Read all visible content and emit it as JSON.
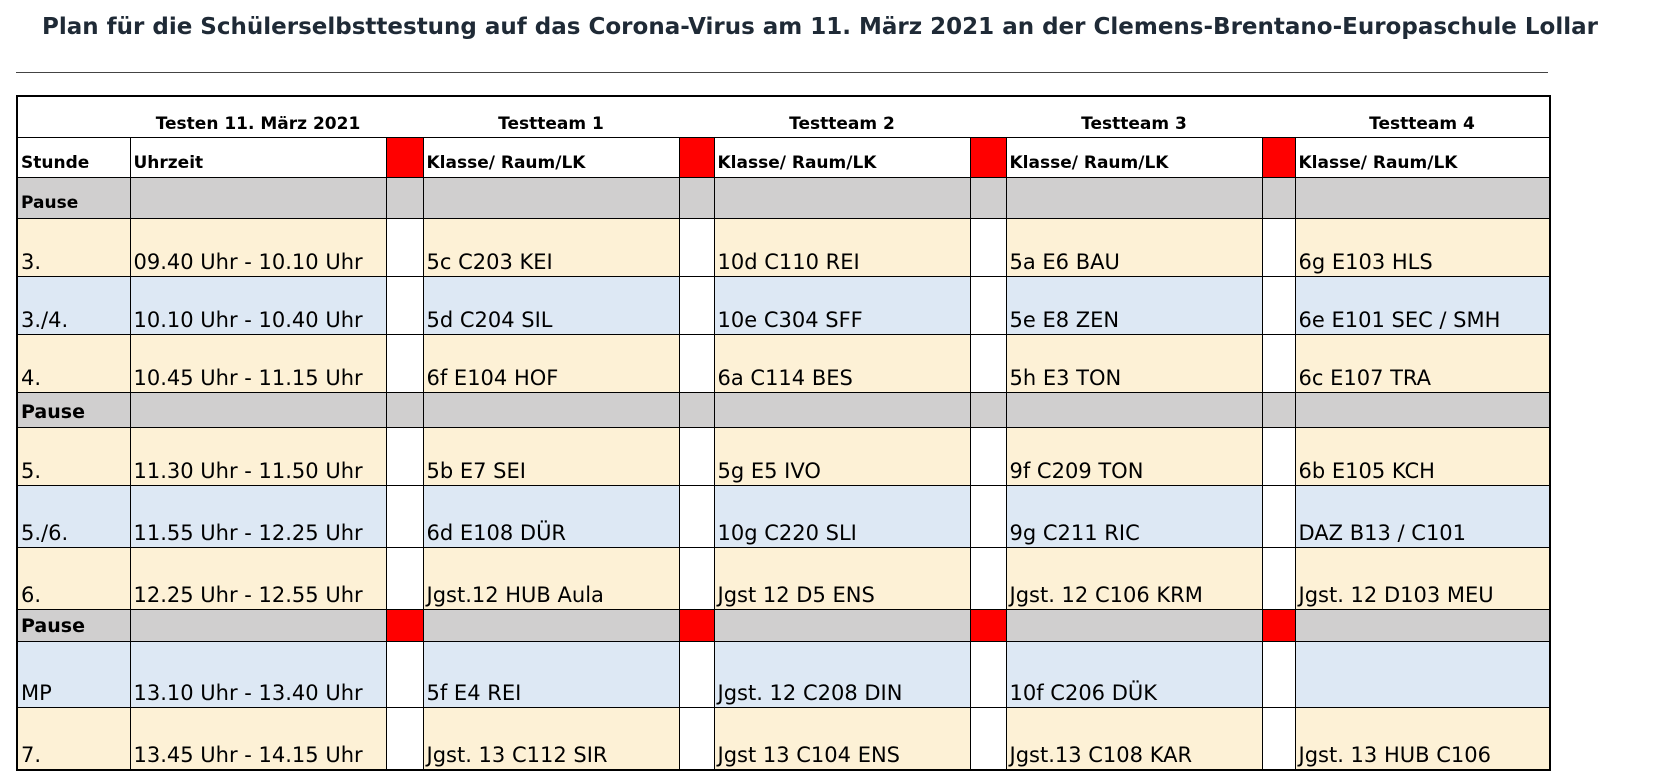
{
  "title": "Plan für die Schülerselbsttestung auf das Corona-Virus am 11. März 2021 an der Clemens-Brentano-Europaschule Lollar",
  "header": {
    "date_label": "Testen 11. März 2021",
    "teams": [
      "Testteam 1",
      "Testteam 2",
      "Testteam 3",
      "Testteam 4"
    ],
    "col_stunde": "Stunde",
    "col_uhrzeit": "Uhrzeit",
    "col_klasse": "Klasse/ Raum/LK"
  },
  "colors": {
    "marker": "#ff0000",
    "pause": "#d0cfcf",
    "yellow": "#fdf1d6",
    "blue": "#dde8f4"
  },
  "rows": [
    {
      "type": "pause",
      "label": "Pause"
    },
    {
      "type": "slot",
      "stunde": "3.",
      "uhrzeit": "09.40 Uhr - 10.10 Uhr",
      "t1": "5c C203 KEI",
      "t2": "10d C110 REI",
      "t3": "5a E6 BAU",
      "t4": "6g E103 HLS"
    },
    {
      "type": "slot",
      "stunde": "3./4.",
      "uhrzeit": "10.10 Uhr - 10.40 Uhr",
      "t1": "5d C204 SIL",
      "t2": "10e C304 SFF",
      "t3": "5e E8 ZEN",
      "t4": "6e E101 SEC / SMH"
    },
    {
      "type": "slot",
      "stunde": "4.",
      "uhrzeit": "10.45 Uhr - 11.15 Uhr",
      "t1": "6f E104 HOF",
      "t2": "6a C114 BES",
      "t3": "5h E3 TON",
      "t4": "6c E107 TRA"
    },
    {
      "type": "pause",
      "label": "Pause"
    },
    {
      "type": "slot",
      "stunde": "5.",
      "uhrzeit": "11.30 Uhr - 11.50 Uhr",
      "t1": "5b E7 SEI",
      "t2": "5g E5 IVO",
      "t3": "9f C209 TON",
      "t4": "6b E105 KCH"
    },
    {
      "type": "slot",
      "stunde": "5./6.",
      "uhrzeit": "11.55 Uhr - 12.25 Uhr",
      "t1": "6d E108 DÜR",
      "t2": "10g C220 SLI",
      "t3": "9g C211 RIC",
      "t4": "DAZ B13 / C101"
    },
    {
      "type": "slot",
      "stunde": "6.",
      "uhrzeit": "12.25 Uhr - 12.55 Uhr",
      "t1": "Jgst.12  HUB Aula",
      "t2": "Jgst 12 D5 ENS",
      "t3": "Jgst. 12 C106 KRM",
      "t4": "Jgst. 12  D103 MEU"
    },
    {
      "type": "pause",
      "label": "Pause"
    },
    {
      "type": "slot",
      "stunde": "MP",
      "uhrzeit": "13.10 Uhr - 13.40 Uhr",
      "t1": "5f E4 REI",
      "t2": "Jgst. 12 C208 DIN",
      "t3": "10f C206 DÜK",
      "t4": ""
    },
    {
      "type": "slot",
      "stunde": "7.",
      "uhrzeit": "13.45 Uhr - 14.15 Uhr",
      "t1": "Jgst. 13 C112 SIR",
      "t2": "Jgst 13 C104 ENS",
      "t3": "Jgst.13 C108 KAR",
      "t4": "Jgst. 13 HUB C106"
    }
  ]
}
